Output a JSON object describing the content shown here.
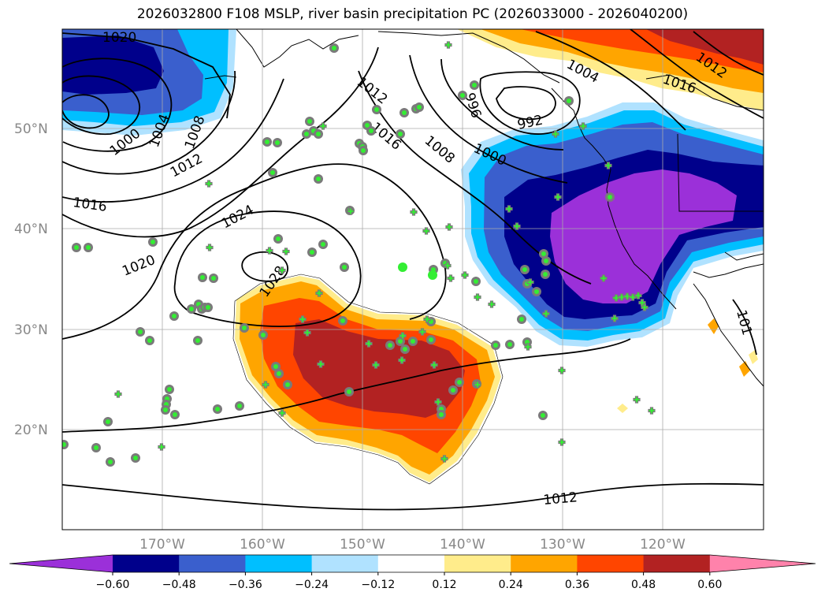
{
  "title": "2026032800 F108 MSLP, river basin precipitation PC (2026033000 - 2026040200)",
  "lat_labels": [
    "50°N",
    "40°N",
    "30°N",
    "20°N"
  ],
  "lon_labels": [
    "170°W",
    "160°W",
    "150°W",
    "140°W",
    "130°W",
    "120°W"
  ],
  "colorbar": {
    "colors": [
      "#9b30d9",
      "#00008b",
      "#3a5fcd",
      "#00bfff",
      "#b0e2ff",
      "#ffffff",
      "#ffec8b",
      "#ffa500",
      "#ff4500",
      "#b22222",
      "#ff82ab"
    ],
    "tick_labels": [
      "−0.60",
      "−0.48",
      "−0.36",
      "−0.24",
      "−0.12",
      "0.12",
      "0.24",
      "0.36",
      "0.48",
      "0.60"
    ]
  },
  "contour_labels": [
    "1020",
    "1000",
    "1004",
    "1008",
    "1012",
    "1016",
    "1020",
    "1024",
    "1028",
    "1012",
    "1016",
    "1008",
    "996",
    "992",
    "1000",
    "1004",
    "1012",
    "1016",
    "1012",
    "101"
  ],
  "colors": {
    "purple": "#9b30d9",
    "navy": "#00008b",
    "blue": "#3a5fcd",
    "cyan": "#00bfff",
    "lightblue": "#b0e2ff",
    "yellow": "#ffec8b",
    "orange": "#ffa500",
    "redorange": "#ff4500",
    "firebrick": "#b22222",
    "marker_green": "#33ee33",
    "marker_gray": "#7a7a7a"
  }
}
